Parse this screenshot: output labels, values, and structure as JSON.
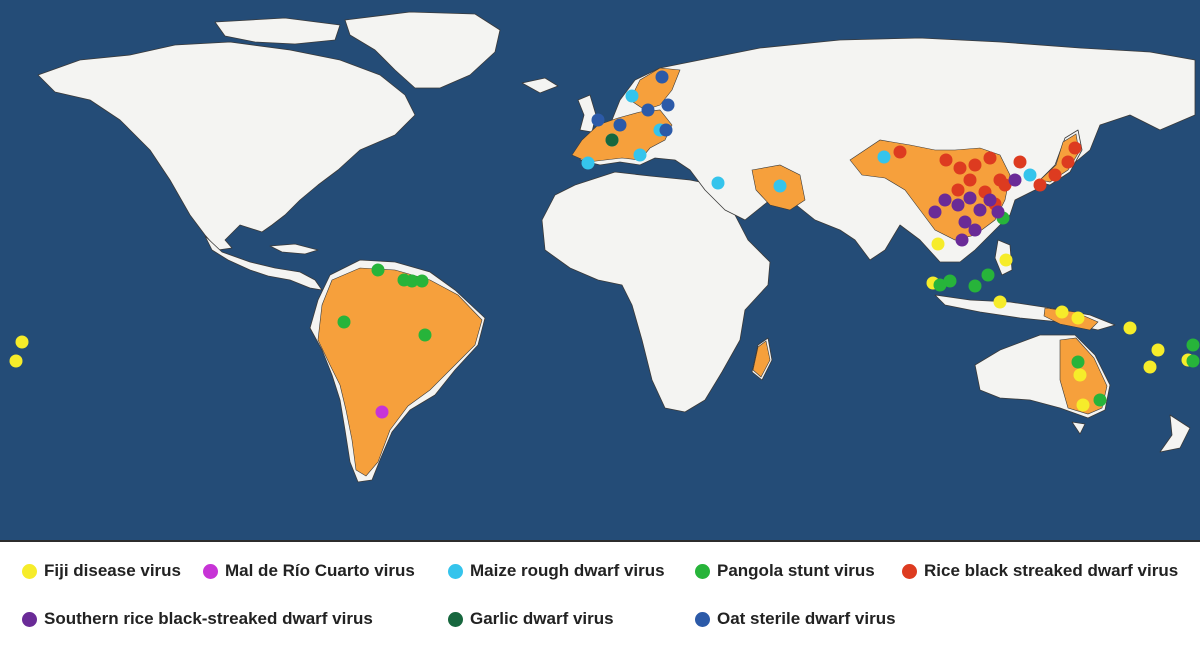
{
  "map": {
    "colors": {
      "ocean": "#244c77",
      "land": "#f4f4f2",
      "border": "#3a3a3a",
      "highlight": "#f6a03c"
    },
    "viruses": [
      {
        "key": "fiji",
        "label": "Fiji disease virus",
        "color": "#f6ec2a"
      },
      {
        "key": "mrcv",
        "label": "Mal de Río Cuarto virus",
        "color": "#c734d6"
      },
      {
        "key": "mrdv",
        "label": "Maize rough dwarf virus",
        "color": "#35c4ec"
      },
      {
        "key": "psv",
        "label": "Pangola stunt virus",
        "color": "#27b43a"
      },
      {
        "key": "rbsdv",
        "label": "Rice black streaked dwarf virus",
        "color": "#dd3b20"
      },
      {
        "key": "srbsdv",
        "label": "Southern rice black-streaked dwarf virus",
        "color": "#6a2b97"
      },
      {
        "key": "gdv",
        "label": "Garlic dwarf virus",
        "color": "#17673e"
      },
      {
        "key": "osdv",
        "label": "Oat sterile dwarf virus",
        "color": "#2c5aa8"
      }
    ]
  }
}
